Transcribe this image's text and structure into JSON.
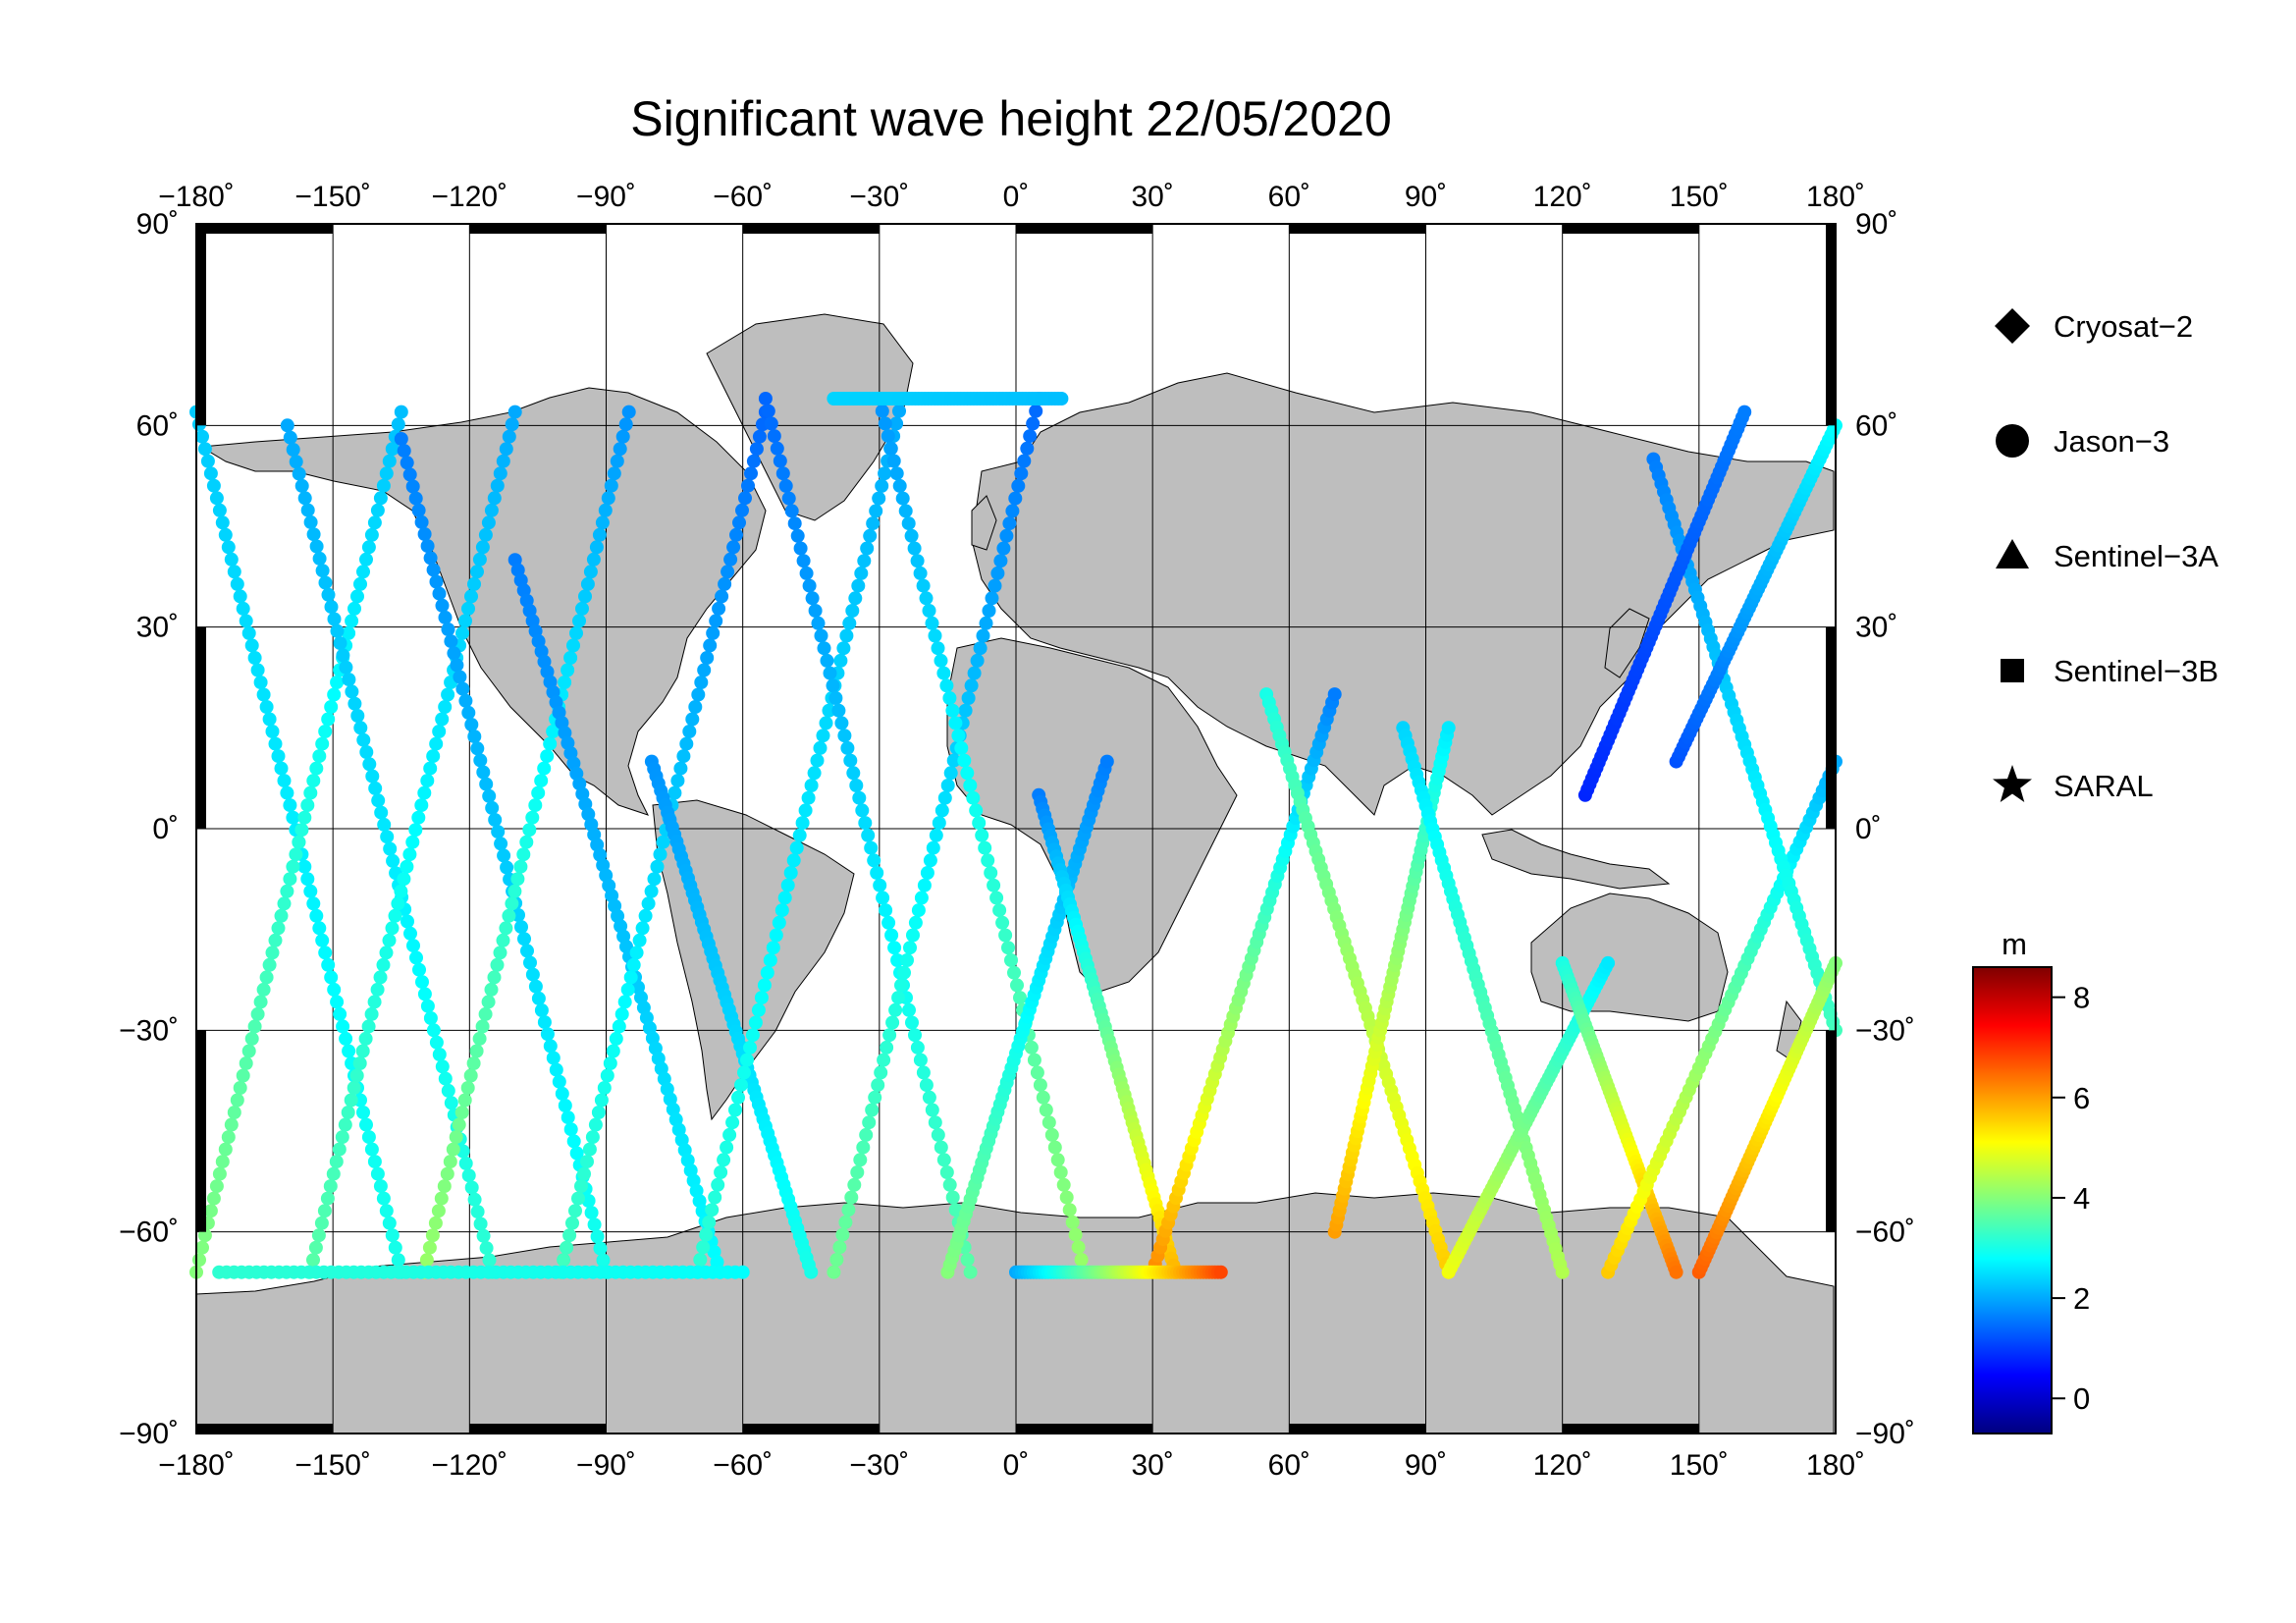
{
  "title": "Significant wave height 22/05/2020",
  "map": {
    "projection": "equirectangular",
    "lon_range": [
      -180,
      180
    ],
    "lat_range": [
      -90,
      90
    ],
    "lon_ticks": [
      "−180˚",
      "−150˚",
      "−120˚",
      "−90˚",
      "−60˚",
      "−30˚",
      "0˚",
      "30˚",
      "60˚",
      "90˚",
      "120˚",
      "150˚",
      "180˚"
    ],
    "lat_ticks": [
      "90˚",
      "60˚",
      "30˚",
      "0˚",
      "−30˚",
      "−60˚",
      "−90˚"
    ],
    "lat_ticks_right": [
      "90˚",
      "60˚",
      "30˚",
      "0˚",
      "−30˚",
      "−60˚",
      "−90˚"
    ],
    "grid": true,
    "land_color": "#bebebe",
    "ocean_color": "#ffffff"
  },
  "legend": {
    "items": [
      {
        "label": "Cryosat−2",
        "marker": "diamond"
      },
      {
        "label": "Jason−3",
        "marker": "circle"
      },
      {
        "label": "Sentinel−3A",
        "marker": "triangle"
      },
      {
        "label": "Sentinel−3B",
        "marker": "square"
      },
      {
        "label": "SARAL",
        "marker": "star"
      }
    ]
  },
  "colorbar": {
    "unit": "m",
    "min": -0.7,
    "max": 8.6,
    "ticks": [
      "0",
      "2",
      "4",
      "6",
      "8"
    ],
    "colormap": "jet"
  },
  "chart_data": {
    "type": "scatter",
    "title": "Significant wave height 22/05/2020",
    "xlabel": "",
    "ylabel": "",
    "xlim": [
      -180,
      180
    ],
    "ylim": [
      -90,
      90
    ],
    "tracks": [
      {
        "lon0": -180,
        "lat0": 62,
        "lon1": -135,
        "lat1": -66,
        "h0": 2.3,
        "h1": 3.0
      },
      {
        "lon0": -180,
        "lat0": -66,
        "lon1": -135,
        "lat1": 62,
        "h0": 4.0,
        "h1": 2.2
      },
      {
        "lon0": -160,
        "lat0": 60,
        "lon1": -115,
        "lat1": -66,
        "h0": 2.0,
        "h1": 3.2
      },
      {
        "lon0": -155,
        "lat0": -66,
        "lon1": -110,
        "lat1": 62,
        "h0": 3.6,
        "h1": 2.0
      },
      {
        "lon0": -135,
        "lat0": 58,
        "lon1": -90,
        "lat1": -66,
        "h0": 1.6,
        "h1": 3.0
      },
      {
        "lon0": -130,
        "lat0": -66,
        "lon1": -85,
        "lat1": 62,
        "h0": 4.2,
        "h1": 1.8
      },
      {
        "lon0": -110,
        "lat0": 40,
        "lon1": -65,
        "lat1": -66,
        "h0": 1.6,
        "h1": 2.8
      },
      {
        "lon0": -100,
        "lat0": -66,
        "lon1": -55,
        "lat1": 62,
        "h0": 3.4,
        "h1": 1.4
      },
      {
        "lon0": -80,
        "lat0": 10,
        "lon1": -45,
        "lat1": -66,
        "h0": 1.8,
        "h1": 3.0
      },
      {
        "lon0": -70,
        "lat0": -66,
        "lon1": -25,
        "lat1": 64,
        "h0": 3.2,
        "h1": 2.0
      },
      {
        "lon0": -55,
        "lat0": 64,
        "lon1": -10,
        "lat1": -66,
        "h0": 1.4,
        "h1": 3.6
      },
      {
        "lon0": -40,
        "lat0": -66,
        "lon1": 5,
        "lat1": 64,
        "h0": 3.8,
        "h1": 1.4
      },
      {
        "lon0": -30,
        "lat0": 64,
        "lon1": 15,
        "lat1": -66,
        "h0": 1.8,
        "h1": 4.2
      },
      {
        "lon0": -15,
        "lat0": -66,
        "lon1": 20,
        "lat1": 10,
        "h0": 4.0,
        "h1": 1.6
      },
      {
        "lon0": 5,
        "lat0": 5,
        "lon1": 35,
        "lat1": -66,
        "h0": 1.6,
        "h1": 5.8
      },
      {
        "lon0": 30,
        "lat0": -66,
        "lon1": 70,
        "lat1": 20,
        "h0": 6.2,
        "h1": 1.6
      },
      {
        "lon0": 55,
        "lat0": 20,
        "lon1": 95,
        "lat1": -66,
        "h0": 3.0,
        "h1": 5.6
      },
      {
        "lon0": 70,
        "lat0": -60,
        "lon1": 95,
        "lat1": 15,
        "h0": 6.0,
        "h1": 2.6
      },
      {
        "lon0": 85,
        "lat0": 15,
        "lon1": 120,
        "lat1": -66,
        "h0": 2.4,
        "h1": 4.4
      },
      {
        "lon0": 95,
        "lat0": -66,
        "lon1": 130,
        "lat1": -20,
        "h0": 5.0,
        "h1": 2.6
      },
      {
        "lon0": 120,
        "lat0": -20,
        "lon1": 145,
        "lat1": -66,
        "h0": 3.0,
        "h1": 6.4
      },
      {
        "lon0": 130,
        "lat0": -66,
        "lon1": 180,
        "lat1": 10,
        "h0": 5.6,
        "h1": 2.0
      },
      {
        "lon0": 140,
        "lat0": 55,
        "lon1": 180,
        "lat1": -30,
        "h0": 1.6,
        "h1": 3.4
      },
      {
        "lon0": 150,
        "lat0": -66,
        "lon1": 180,
        "lat1": -20,
        "h0": 6.6,
        "h1": 4.0
      },
      {
        "lon0": 145,
        "lat0": 10,
        "lon1": 180,
        "lat1": 60,
        "h0": 1.2,
        "h1": 2.8
      },
      {
        "lon0": 125,
        "lat0": 5,
        "lon1": 160,
        "lat1": 62,
        "h0": 0.8,
        "h1": 1.6
      },
      {
        "lon0": -40,
        "lat0": 64,
        "lon1": 10,
        "lat1": 64,
        "h0": 2.4,
        "h1": 2.2
      },
      {
        "lon0": -175,
        "lat0": -66,
        "lon1": -60,
        "lat1": -66,
        "h0": 3.2,
        "h1": 2.8
      },
      {
        "lon0": 0,
        "lat0": -66,
        "lon1": 45,
        "lat1": -66,
        "h0": 2.0,
        "h1": 6.8
      }
    ],
    "colorbar_range": [
      -0.7,
      8.6
    ]
  }
}
